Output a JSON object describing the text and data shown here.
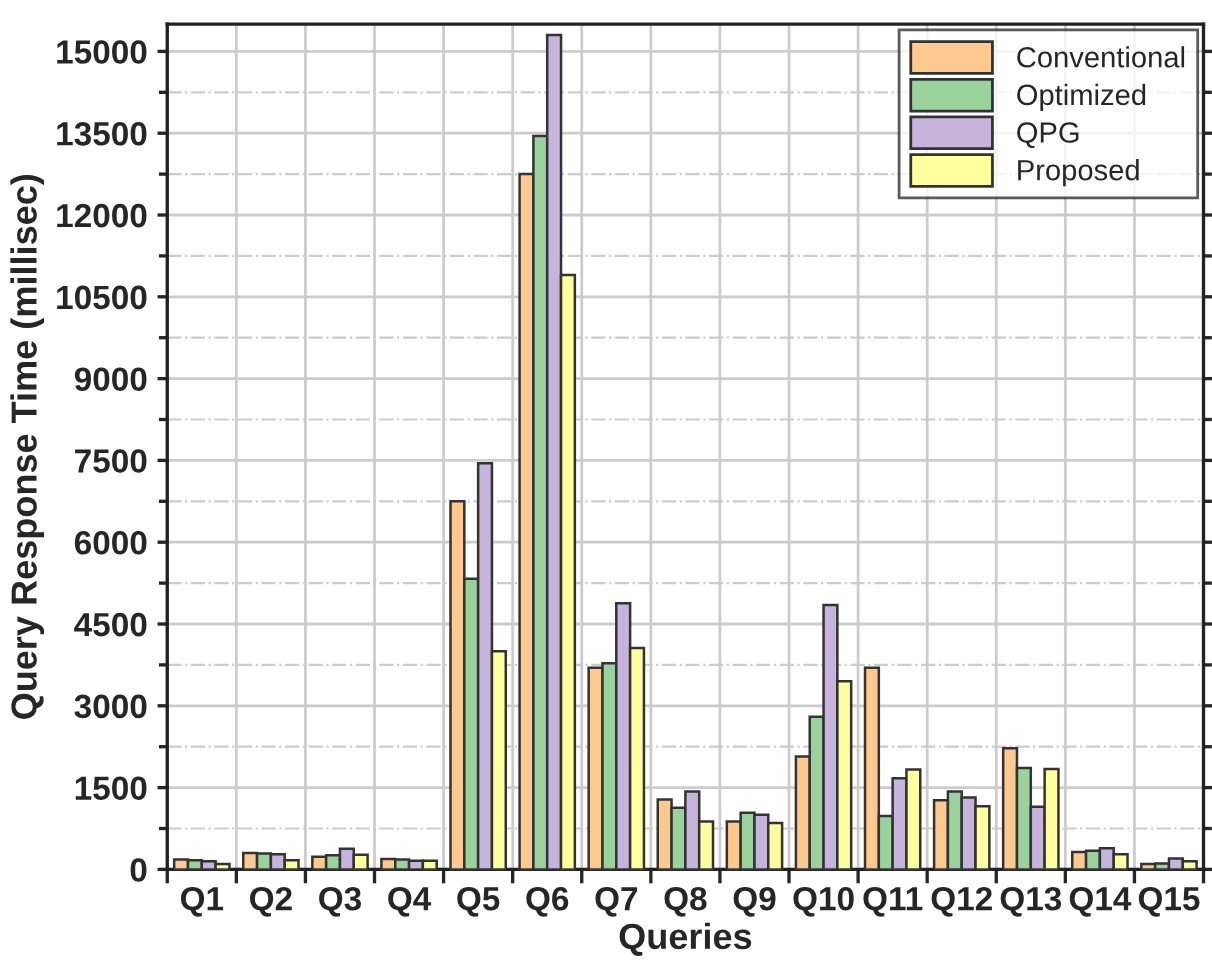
{
  "chart_data": {
    "type": "bar",
    "xlabel": "Queries",
    "ylabel": "Query Response Time (millisec)",
    "categories": [
      "Q1",
      "Q2",
      "Q3",
      "Q4",
      "Q5",
      "Q6",
      "Q7",
      "Q8",
      "Q9",
      "Q10",
      "Q11",
      "Q12",
      "Q13",
      "Q14",
      "Q15"
    ],
    "series": [
      {
        "name": "Conventional",
        "color": "#fdc98f",
        "values": [
          180,
          300,
          230,
          190,
          6750,
          12750,
          3700,
          1280,
          880,
          2070,
          3700,
          1270,
          2220,
          320,
          100
        ]
      },
      {
        "name": "Optimized",
        "color": "#99d39b",
        "values": [
          170,
          290,
          260,
          180,
          5330,
          13450,
          3780,
          1130,
          1040,
          2800,
          980,
          1430,
          1860,
          340,
          110
        ]
      },
      {
        "name": "QPG",
        "color": "#c6b4dc",
        "values": [
          150,
          280,
          380,
          160,
          7450,
          15300,
          4880,
          1430,
          1000,
          4850,
          1670,
          1320,
          1150,
          390,
          200
        ]
      },
      {
        "name": "Proposed",
        "color": "#ffff9e",
        "values": [
          100,
          170,
          270,
          160,
          4000,
          10900,
          4060,
          880,
          850,
          3450,
          1830,
          1160,
          1840,
          280,
          150
        ]
      }
    ],
    "ylim": [
      0,
      15500
    ],
    "yticks": [
      0,
      1500,
      3000,
      4500,
      6000,
      7500,
      9000,
      10500,
      12000,
      13500,
      15000
    ],
    "grid": true,
    "legend": "top right"
  }
}
